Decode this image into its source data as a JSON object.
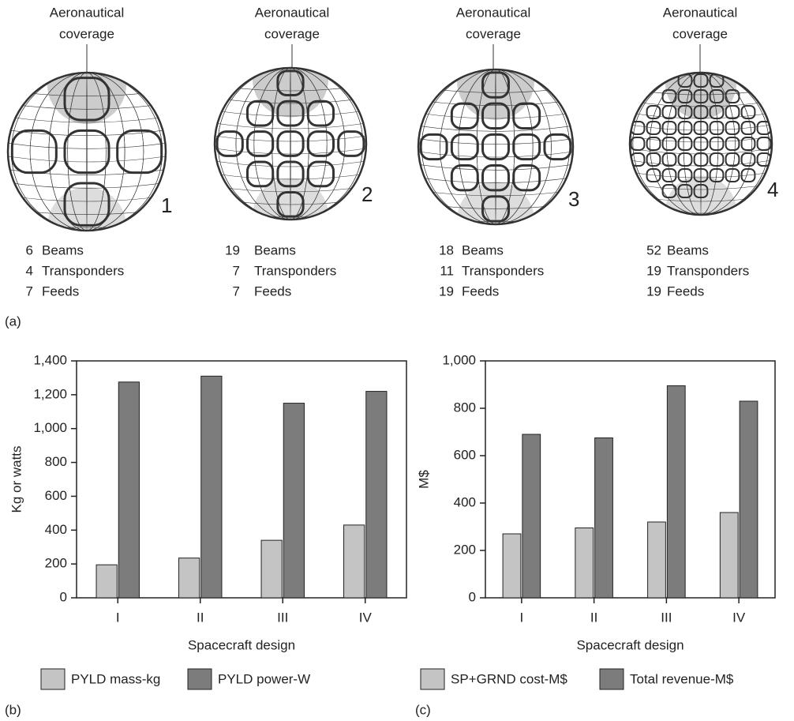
{
  "coverage_panel": {
    "panel_label": "(a)",
    "globes": [
      {
        "number": "1",
        "title": [
          "Aeronautical",
          "coverage"
        ],
        "specs": [
          {
            "count": 6,
            "label": "Beams"
          },
          {
            "count": 4,
            "label": "Transponders"
          },
          {
            "count": 7,
            "label": "Feeds"
          }
        ]
      },
      {
        "number": "2",
        "title": [
          "Aeronautical",
          "coverage"
        ],
        "specs": [
          {
            "count": 19,
            "label": "Beams"
          },
          {
            "count": 7,
            "label": "Transponders"
          },
          {
            "count": 7,
            "label": "Feeds"
          }
        ]
      },
      {
        "number": "3",
        "title": [
          "Aeronautical",
          "coverage"
        ],
        "specs": [
          {
            "count": 18,
            "label": "Beams"
          },
          {
            "count": 11,
            "label": "Transponders"
          },
          {
            "count": 19,
            "label": "Feeds"
          }
        ]
      },
      {
        "number": "4",
        "title": [
          "Aeronautical",
          "coverage"
        ],
        "specs": [
          {
            "count": 52,
            "label": "Beams"
          },
          {
            "count": 19,
            "label": "Transponders"
          },
          {
            "count": 19,
            "label": "Feeds"
          }
        ]
      }
    ]
  },
  "chart_data": [
    {
      "type": "bar",
      "panel_label": "(b)",
      "y_label": "Kg or watts",
      "x_label": "Spacecraft design",
      "categories": [
        "I",
        "II",
        "III",
        "IV"
      ],
      "series": [
        {
          "name": "PYLD mass-kg",
          "color": "#c4c4c4",
          "values": [
            195,
            235,
            340,
            430
          ]
        },
        {
          "name": "PYLD power-W",
          "color": "#7c7c7c",
          "values": [
            1275,
            1310,
            1150,
            1220
          ]
        }
      ],
      "ylim": [
        0,
        1400
      ],
      "yticks": [
        0,
        200,
        400,
        600,
        800,
        {
          "value": 1000,
          "label": "1,000"
        },
        {
          "value": 1200,
          "label": "1,200"
        },
        {
          "value": 1400,
          "label": "1,400"
        }
      ],
      "grid": false,
      "legend": "bottom"
    },
    {
      "type": "bar",
      "panel_label": "(c)",
      "y_label": "M$",
      "x_label": "Spacecraft design",
      "categories": [
        "I",
        "II",
        "III",
        "IV"
      ],
      "series": [
        {
          "name": "SP+GRND cost-M$",
          "color": "#c4c4c4",
          "values": [
            270,
            295,
            320,
            360
          ]
        },
        {
          "name": "Total revenue-M$",
          "color": "#7c7c7c",
          "values": [
            690,
            675,
            895,
            830
          ]
        }
      ],
      "ylim": [
        0,
        1000
      ],
      "yticks": [
        0,
        200,
        400,
        600,
        800,
        {
          "value": 1000,
          "label": "1,000"
        }
      ],
      "grid": false,
      "legend": "bottom"
    }
  ]
}
